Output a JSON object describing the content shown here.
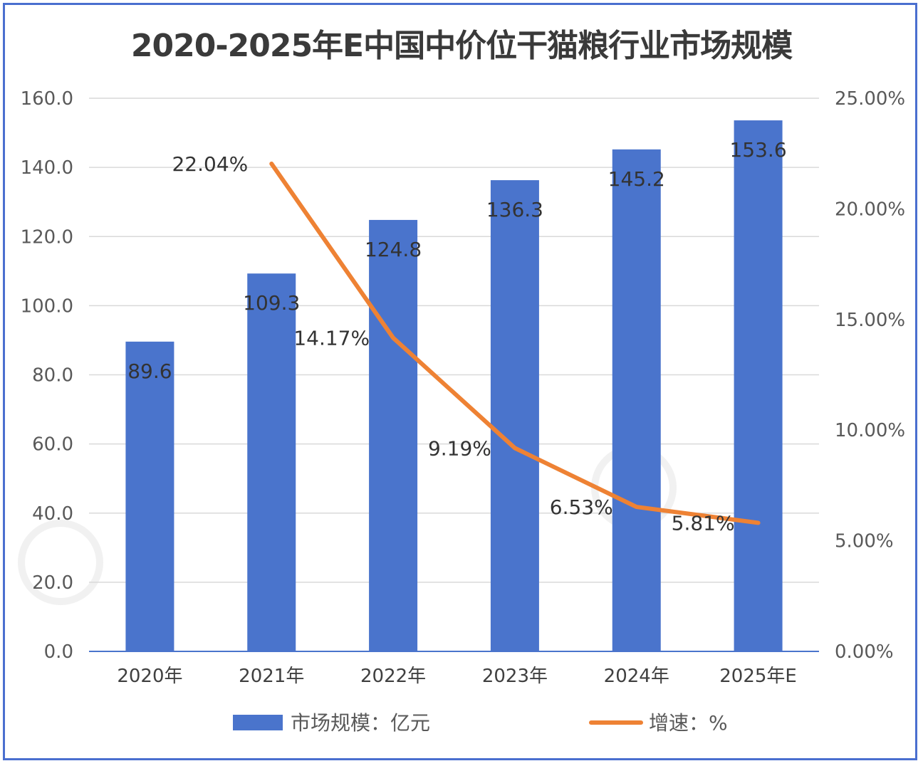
{
  "title": "2020-2025年E中国中价位干猫粮行业市场规模",
  "colors": {
    "bar": "#4a74cc",
    "line": "#ee8234",
    "grid": "#d9d9d9",
    "axis": "#4a74cc",
    "border": "#4a6fcf"
  },
  "chart_data": {
    "type": "bar",
    "categories": [
      "2020年",
      "2021年",
      "2022年",
      "2023年",
      "2024年",
      "2025年E"
    ],
    "series": [
      {
        "name": "市场规模：亿元",
        "type": "bar",
        "axis": "left",
        "values": [
          89.6,
          109.3,
          124.8,
          136.3,
          145.2,
          153.6
        ],
        "labels": [
          "89.6",
          "109.3",
          "124.8",
          "136.3",
          "145.2",
          "153.6"
        ]
      },
      {
        "name": "增速：%",
        "type": "line",
        "axis": "right",
        "values": [
          null,
          22.04,
          14.17,
          9.19,
          6.53,
          5.81
        ],
        "labels": [
          "",
          "22.04%",
          "14.17%",
          "9.19%",
          "6.53%",
          "5.81%"
        ]
      }
    ],
    "ylim_left": [
      0,
      160
    ],
    "yticks_left": [
      "0.0",
      "20.0",
      "40.0",
      "60.0",
      "80.0",
      "100.0",
      "120.0",
      "140.0",
      "160.0"
    ],
    "ylim_right": [
      0,
      25
    ],
    "yticks_right": [
      "0.00%",
      "5.00%",
      "10.00%",
      "15.00%",
      "20.00%",
      "25.00%"
    ],
    "grid": true,
    "legend_position": "bottom"
  }
}
